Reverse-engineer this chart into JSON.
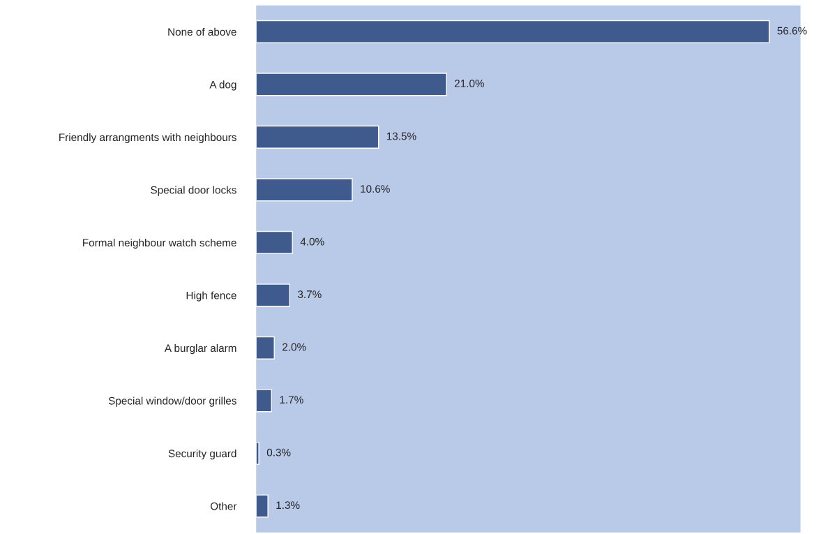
{
  "chart_data": {
    "type": "bar",
    "orientation": "horizontal",
    "categories": [
      "None of above",
      "A dog",
      "Friendly arrangments with neighbours",
      "Special door locks",
      "Formal neighbour watch scheme",
      "High fence",
      "A burglar alarm",
      "Special window/door grilles",
      "Security guard",
      "Other"
    ],
    "values": [
      56.6,
      21.0,
      13.5,
      10.6,
      4.0,
      3.7,
      2.0,
      1.7,
      0.3,
      1.3
    ],
    "value_labels": [
      "56.6%",
      "21.0%",
      "13.5%",
      "10.6%",
      "4.0%",
      "3.7%",
      "2.0%",
      "1.7%",
      "0.3%",
      "1.3%"
    ],
    "color": "#3f5a8c",
    "grid": false,
    "legend": false
  }
}
